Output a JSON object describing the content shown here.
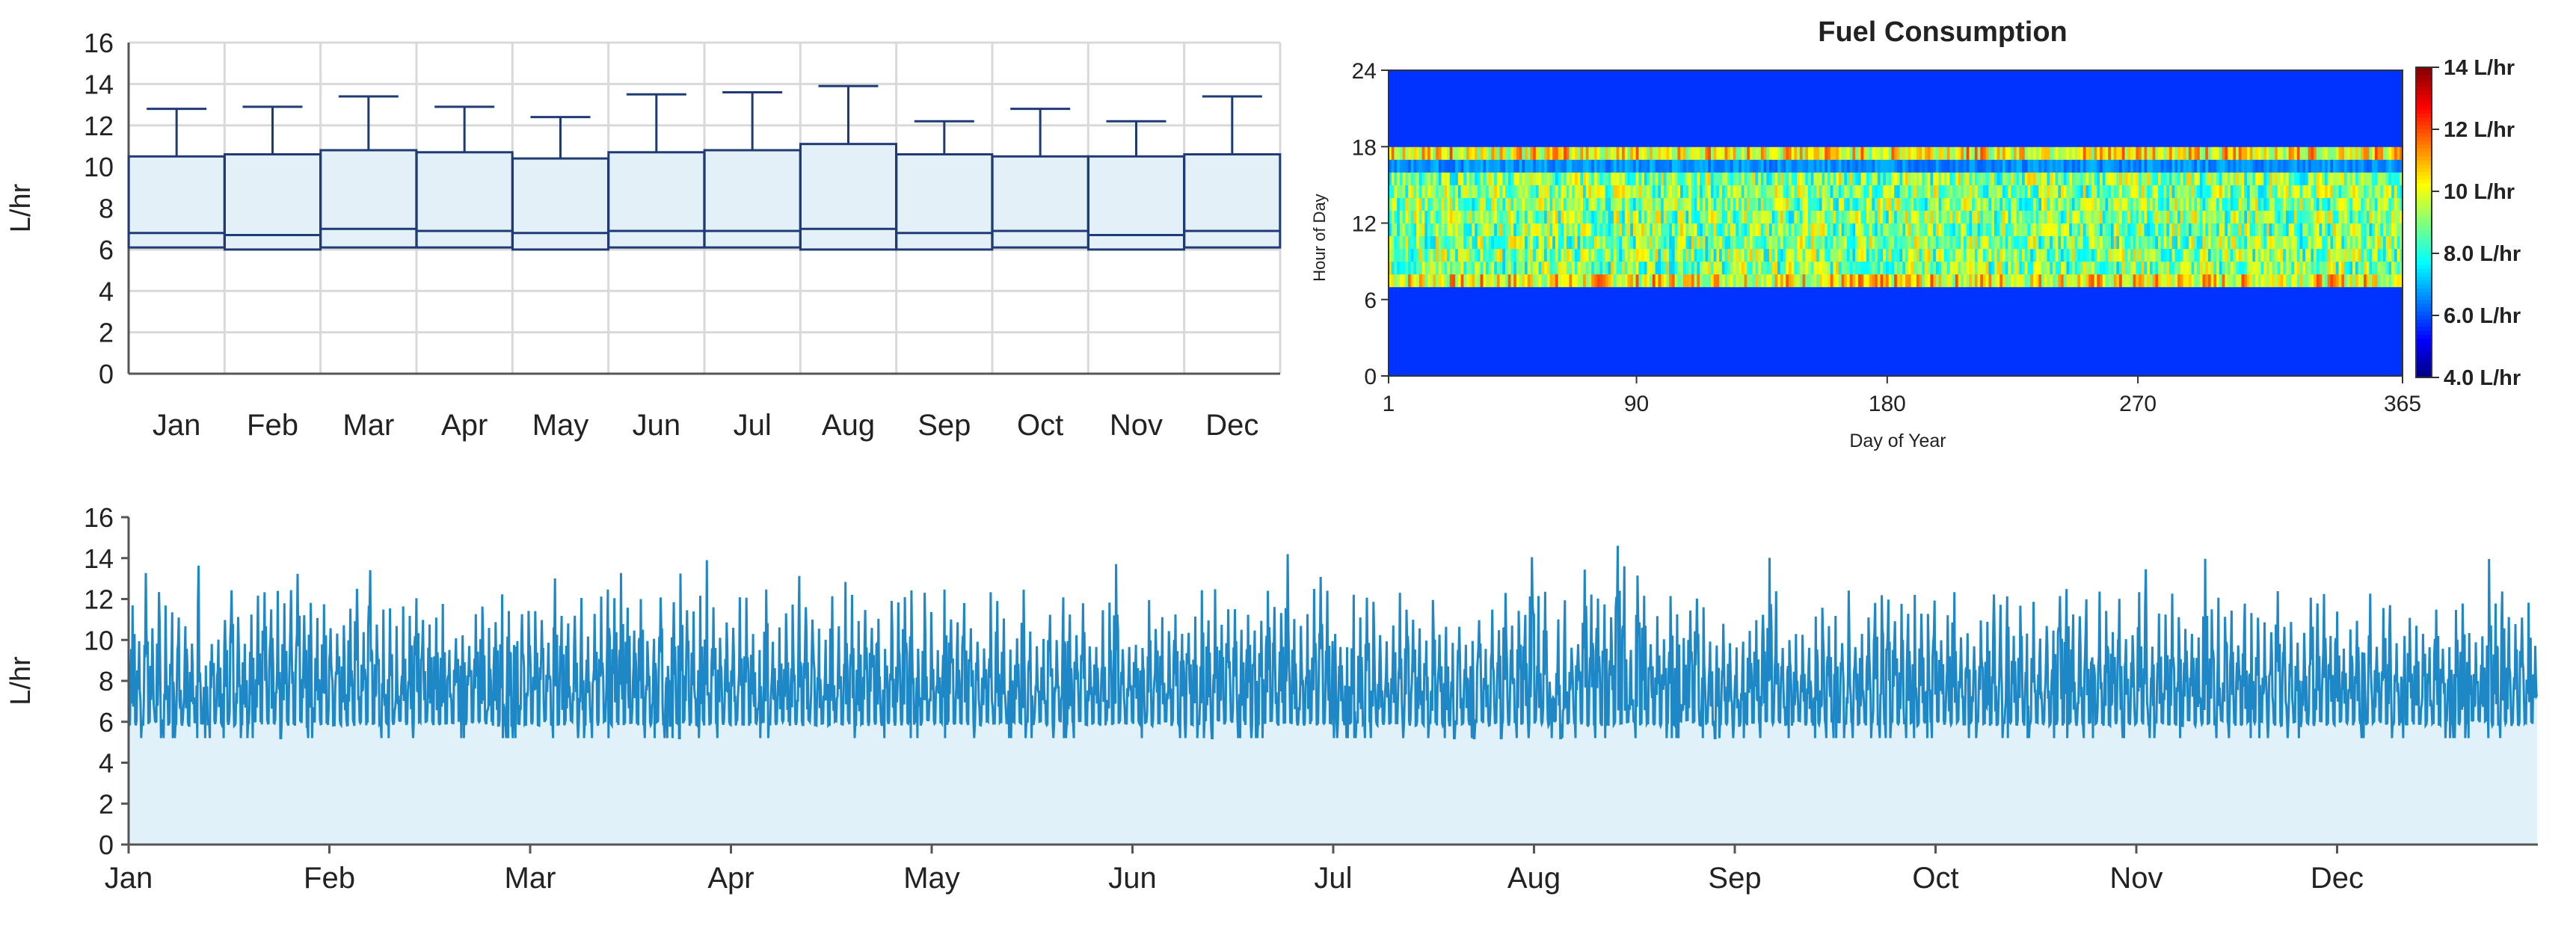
{
  "chart_data": [
    {
      "type": "box",
      "ylabel": "L/hr",
      "ylim": [
        0,
        16
      ],
      "yticks": [
        0,
        2,
        4,
        6,
        8,
        10,
        12,
        14,
        16
      ],
      "grid": true,
      "categories": [
        "Jan",
        "Feb",
        "Mar",
        "Apr",
        "May",
        "Jun",
        "Jul",
        "Aug",
        "Sep",
        "Oct",
        "Nov",
        "Dec"
      ],
      "boxes": [
        {
          "min": 6.0,
          "q1": 6.1,
          "median": 6.8,
          "q3": 10.5,
          "max": 12.8
        },
        {
          "min": 6.0,
          "q1": 6.0,
          "median": 6.7,
          "q3": 10.6,
          "max": 12.9
        },
        {
          "min": 6.0,
          "q1": 6.1,
          "median": 7.0,
          "q3": 10.8,
          "max": 13.4
        },
        {
          "min": 6.0,
          "q1": 6.1,
          "median": 6.9,
          "q3": 10.7,
          "max": 12.9
        },
        {
          "min": 6.0,
          "q1": 6.0,
          "median": 6.8,
          "q3": 10.4,
          "max": 12.4
        },
        {
          "min": 6.0,
          "q1": 6.1,
          "median": 6.9,
          "q3": 10.7,
          "max": 13.5
        },
        {
          "min": 6.0,
          "q1": 6.1,
          "median": 6.9,
          "q3": 10.8,
          "max": 13.6
        },
        {
          "min": 6.0,
          "q1": 6.0,
          "median": 7.0,
          "q3": 11.1,
          "max": 13.9
        },
        {
          "min": 6.0,
          "q1": 6.0,
          "median": 6.8,
          "q3": 10.6,
          "max": 12.2
        },
        {
          "min": 6.0,
          "q1": 6.1,
          "median": 6.9,
          "q3": 10.5,
          "max": 12.8
        },
        {
          "min": 6.0,
          "q1": 6.0,
          "median": 6.7,
          "q3": 10.5,
          "max": 12.2
        },
        {
          "min": 6.0,
          "q1": 6.1,
          "median": 6.9,
          "q3": 10.6,
          "max": 13.4
        }
      ],
      "colors": {
        "box_fill": "#e3f0f8",
        "box_stroke": "#1f3b73",
        "grid": "#d9d9d9"
      }
    },
    {
      "type": "heatmap",
      "title": "Fuel Consumption",
      "xlabel": "Day of Year",
      "ylabel": "Hour of Day",
      "xlim": [
        1,
        365
      ],
      "ylim": [
        0,
        24
      ],
      "xticks": [
        1,
        90,
        180,
        270,
        365
      ],
      "yticks": [
        0,
        6,
        12,
        18,
        24
      ],
      "legend": "right",
      "colorbar": {
        "min": 4.0,
        "max": 14.0,
        "tick_labels": [
          "14 L/hr",
          "12 L/hr",
          "10 L/hr",
          "8.0 L/hr",
          "6.0 L/hr",
          "4.0 L/hr"
        ],
        "tick_values": [
          14,
          12,
          10,
          8,
          6,
          4
        ]
      },
      "off_hours_value": 5.7,
      "operating_hours": [
        7,
        18
      ],
      "evening_dip_hour": 16,
      "typical_operating_value_range": [
        6.5,
        13.0
      ]
    },
    {
      "type": "area",
      "ylabel": "L/hr",
      "ylim": [
        0,
        16
      ],
      "yticks": [
        0,
        2,
        4,
        6,
        8,
        10,
        12,
        14,
        16
      ],
      "x_tick_labels": [
        "Jan",
        "Feb",
        "Mar",
        "Apr",
        "May",
        "Jun",
        "Jul",
        "Aug",
        "Sep",
        "Oct",
        "Nov",
        "Dec"
      ],
      "baseline_value": 5.8,
      "typical_daily_peak_range": [
        9.5,
        12.5
      ],
      "max_value": 14.6,
      "colors": {
        "line": "#1e88c7",
        "fill": "#e1f1fa"
      }
    }
  ]
}
